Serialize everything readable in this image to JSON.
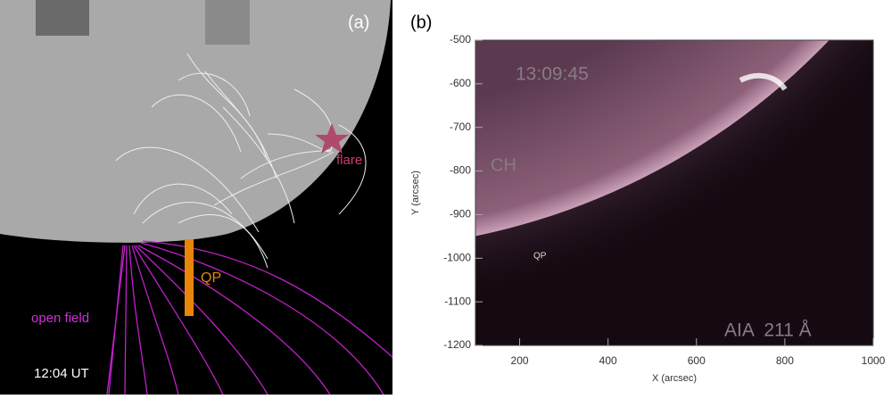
{
  "panel_a": {
    "label": "(a)",
    "flare": "flare",
    "qp": "QP",
    "open_field": "open field",
    "time": "12:04 UT"
  },
  "panel_b": {
    "label": "(b)",
    "timestamp": "13:09:45",
    "ch": "CH",
    "qp": "QP",
    "instrument": "AIA  211 Å",
    "x_label": "X (arcsec)",
    "y_label": "Y (arcsec)",
    "xlim": [
      100,
      1000
    ],
    "ylim": [
      -1200,
      -500
    ],
    "xticks": [
      200,
      400,
      600,
      800,
      1000
    ],
    "yticks": [
      -500,
      -600,
      -700,
      -800,
      -900,
      -1000,
      -1100,
      -1200
    ]
  }
}
